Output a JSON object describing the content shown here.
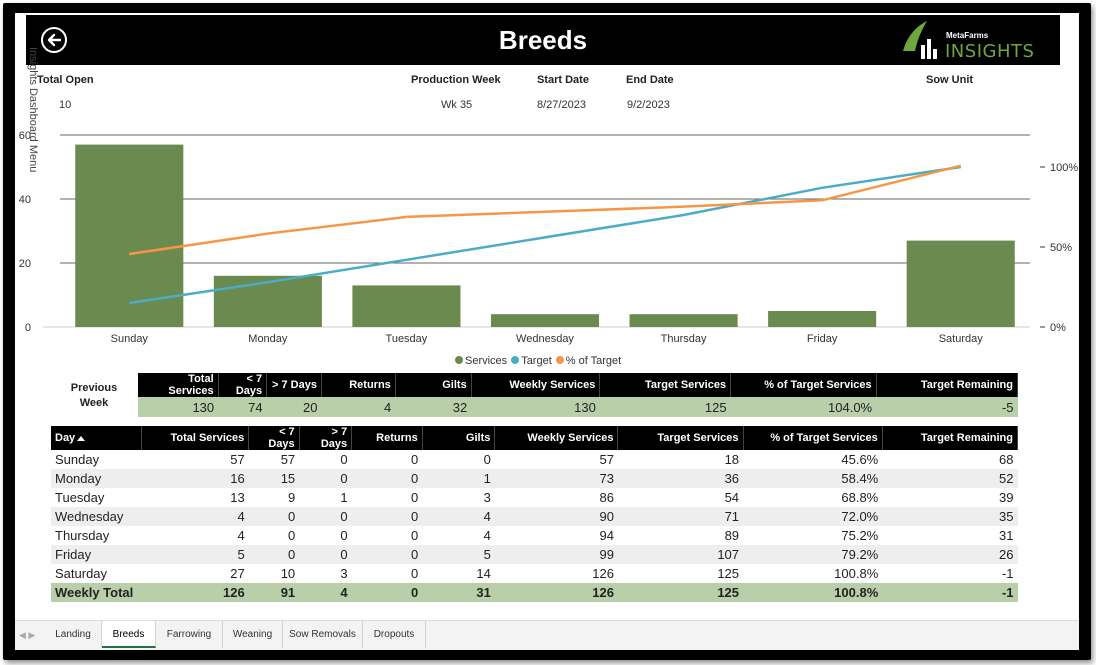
{
  "header": {
    "title": "Breeds",
    "logo_small": "MetaFarms",
    "logo_big": "INSIGHTS"
  },
  "side_menu": "Insights Dashboard Menu",
  "kpis": [
    {
      "label": "Total Open",
      "value": "10"
    },
    {
      "label": "Production Week",
      "value": "Wk 35"
    },
    {
      "label": "Start Date",
      "value": "8/27/2023"
    },
    {
      "label": "End Date",
      "value": "9/2/2023"
    },
    {
      "label": "Sow Unit",
      "value": ""
    }
  ],
  "chart_data": {
    "type": "bar",
    "categories": [
      "Sunday",
      "Monday",
      "Tuesday",
      "Wednesday",
      "Thursday",
      "Friday",
      "Saturday"
    ],
    "series": [
      {
        "name": "Services",
        "kind": "bar",
        "axis": "left",
        "values": [
          57,
          16,
          13,
          4,
          4,
          5,
          27
        ]
      },
      {
        "name": "Target",
        "kind": "line",
        "axis": "right",
        "values": [
          0.15,
          0.28,
          0.42,
          0.56,
          0.7,
          0.87,
          1.0
        ]
      },
      {
        "name": "% of Target",
        "kind": "line",
        "axis": "right",
        "values": [
          0.456,
          0.584,
          0.688,
          0.72,
          0.752,
          0.792,
          1.008
        ]
      }
    ],
    "y_left": {
      "ylim": [
        0,
        60
      ],
      "ticks": [
        "0",
        "20",
        "40",
        "60"
      ]
    },
    "y_right": {
      "ylim": [
        0,
        1.2
      ],
      "ticks": [
        "0%",
        "50%",
        "100%"
      ]
    },
    "colors": {
      "Services": "#6a8a4f",
      "Target": "#4bacc6",
      "% of Target": "#f79646"
    },
    "grid": true,
    "legend": "bottom-center"
  },
  "tables": {
    "previous_week_label": "Previous Week",
    "previous_week": {
      "headers": [
        "Total Services",
        "< 7 Days",
        "> 7 Days",
        "Returns",
        "Gilts",
        "Weekly Services",
        "Target Services",
        "% of Target Services",
        "Target Remaining"
      ],
      "row": [
        "130",
        "74",
        "20",
        "4",
        "32",
        "130",
        "125",
        "104.0%",
        "-5"
      ]
    },
    "daily": {
      "headers": [
        "Day",
        "Total Services",
        "< 7 Days",
        "> 7 Days",
        "Returns",
        "Gilts",
        "Weekly Services",
        "Target Services",
        "% of Target Services",
        "Target Remaining"
      ],
      "rows": [
        [
          "Sunday",
          "57",
          "57",
          "0",
          "0",
          "0",
          "57",
          "18",
          "45.6%",
          "68"
        ],
        [
          "Monday",
          "16",
          "15",
          "0",
          "0",
          "1",
          "73",
          "36",
          "58.4%",
          "52"
        ],
        [
          "Tuesday",
          "13",
          "9",
          "1",
          "0",
          "3",
          "86",
          "54",
          "68.8%",
          "39"
        ],
        [
          "Wednesday",
          "4",
          "0",
          "0",
          "0",
          "4",
          "90",
          "71",
          "72.0%",
          "35"
        ],
        [
          "Thursday",
          "4",
          "0",
          "0",
          "0",
          "4",
          "94",
          "89",
          "75.2%",
          "31"
        ],
        [
          "Friday",
          "5",
          "0",
          "0",
          "0",
          "5",
          "99",
          "107",
          "79.2%",
          "26"
        ],
        [
          "Saturday",
          "27",
          "10",
          "3",
          "0",
          "14",
          "126",
          "125",
          "100.8%",
          "-1"
        ]
      ],
      "total": [
        "Weekly Total",
        "126",
        "91",
        "4",
        "0",
        "31",
        "126",
        "125",
        "100.8%",
        "-1"
      ]
    }
  },
  "tabs": [
    {
      "label": "Landing",
      "active": false
    },
    {
      "label": "Breeds",
      "active": true
    },
    {
      "label": "Farrowing",
      "active": false
    },
    {
      "label": "Weaning",
      "active": false
    },
    {
      "label": "Sow Removals",
      "active": false
    },
    {
      "label": "Dropouts",
      "active": false
    }
  ]
}
